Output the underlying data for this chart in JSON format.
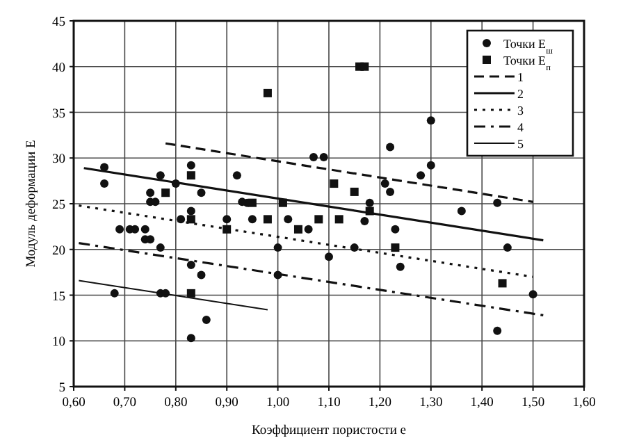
{
  "chart_data": {
    "type": "scatter",
    "xlabel": "Коэффициент пористости e",
    "ylabel": "Модуль деформации E",
    "xlim": [
      0.6,
      1.6
    ],
    "ylim": [
      5,
      45
    ],
    "xticks": [
      {
        "value": 0.6,
        "label": "0,60"
      },
      {
        "value": 0.7,
        "label": "0,70"
      },
      {
        "value": 0.8,
        "label": "0,80"
      },
      {
        "value": 0.9,
        "label": "0,90"
      },
      {
        "value": 1.0,
        "label": "1,00"
      },
      {
        "value": 1.1,
        "label": "1,10"
      },
      {
        "value": 1.2,
        "label": "1,20"
      },
      {
        "value": 1.3,
        "label": "1,30"
      },
      {
        "value": 1.4,
        "label": "1,40"
      },
      {
        "value": 1.5,
        "label": "1,50"
      },
      {
        "value": 1.6,
        "label": "1,60"
      }
    ],
    "yticks": [
      5,
      10,
      15,
      20,
      25,
      30,
      35,
      40,
      45
    ],
    "grid": true,
    "legend": "top right",
    "series": [
      {
        "name": "Точки E$_{ш}$",
        "marker": "circle",
        "color": "#111111",
        "x": [
          0.66,
          0.66,
          0.75,
          0.77,
          0.8,
          0.83,
          0.85,
          0.92,
          0.94,
          1.07,
          1.09,
          0.69,
          0.71,
          0.72,
          0.74,
          0.74,
          0.75,
          0.77,
          0.75,
          0.76,
          0.81,
          0.83,
          0.83,
          0.85,
          0.68,
          0.77,
          0.78,
          0.86,
          0.83,
          0.93,
          0.95,
          0.9,
          1.0,
          1.0,
          1.02,
          1.06,
          1.3,
          1.22,
          1.28,
          1.3,
          1.21,
          1.22,
          1.18,
          1.43,
          1.36,
          1.17,
          1.23,
          1.1,
          1.15,
          1.24,
          1.45,
          1.5,
          1.43
        ],
        "values": [
          29,
          27.2,
          26.2,
          28.1,
          27.2,
          29.2,
          26.2,
          28.1,
          25.1,
          30.1,
          30.1,
          22.2,
          22.2,
          22.2,
          22.2,
          21.1,
          21.1,
          20.2,
          25.2,
          25.2,
          23.3,
          24.2,
          18.3,
          17.2,
          15.2,
          15.2,
          15.2,
          12.3,
          10.3,
          25.2,
          23.3,
          23.3,
          20.2,
          17.2,
          23.3,
          22.2,
          34.1,
          31.2,
          28.1,
          29.2,
          27.2,
          26.3,
          25.1,
          25.1,
          24.2,
          23.1,
          22.2,
          19.2,
          20.2,
          18.1,
          20.2,
          15.1,
          11.1
        ]
      },
      {
        "name": "Точки E$_{п}$",
        "marker": "square",
        "color": "#111111",
        "x": [
          0.98,
          1.16,
          1.17,
          0.83,
          0.78,
          0.95,
          1.01,
          1.11,
          1.15,
          0.83,
          0.9,
          0.98,
          1.04,
          1.08,
          1.12,
          0.83,
          1.18,
          1.23,
          1.44
        ],
        "values": [
          37.1,
          40,
          40,
          28.1,
          26.2,
          25.1,
          25.1,
          27.2,
          26.3,
          23.3,
          22.2,
          23.3,
          22.2,
          23.3,
          23.3,
          15.2,
          24.2,
          20.2,
          16.3
        ]
      },
      {
        "name": "1",
        "type": "line",
        "line_style": "dashed",
        "marker": "none",
        "color": "#111111",
        "x": [
          0.78,
          1.5
        ],
        "values": [
          31.6,
          25.2
        ]
      },
      {
        "name": "2",
        "type": "line",
        "line_style": "solid",
        "marker": "none",
        "color": "#111111",
        "x": [
          0.62,
          1.52
        ],
        "values": [
          28.9,
          21
        ]
      },
      {
        "name": "3",
        "type": "line",
        "line_style": "dotted",
        "marker": "none",
        "color": "#111111",
        "x": [
          0.61,
          1.5
        ],
        "values": [
          24.8,
          17
        ]
      },
      {
        "name": "4",
        "type": "line",
        "line_style": "dashdot",
        "marker": "none",
        "color": "#111111",
        "x": [
          0.61,
          1.52
        ],
        "values": [
          20.7,
          12.8
        ]
      },
      {
        "name": "5",
        "type": "line",
        "line_style": "solid",
        "marker": "none",
        "color": "#111111",
        "x": [
          0.61,
          0.98
        ],
        "values": [
          16.6,
          13.4
        ]
      }
    ]
  }
}
